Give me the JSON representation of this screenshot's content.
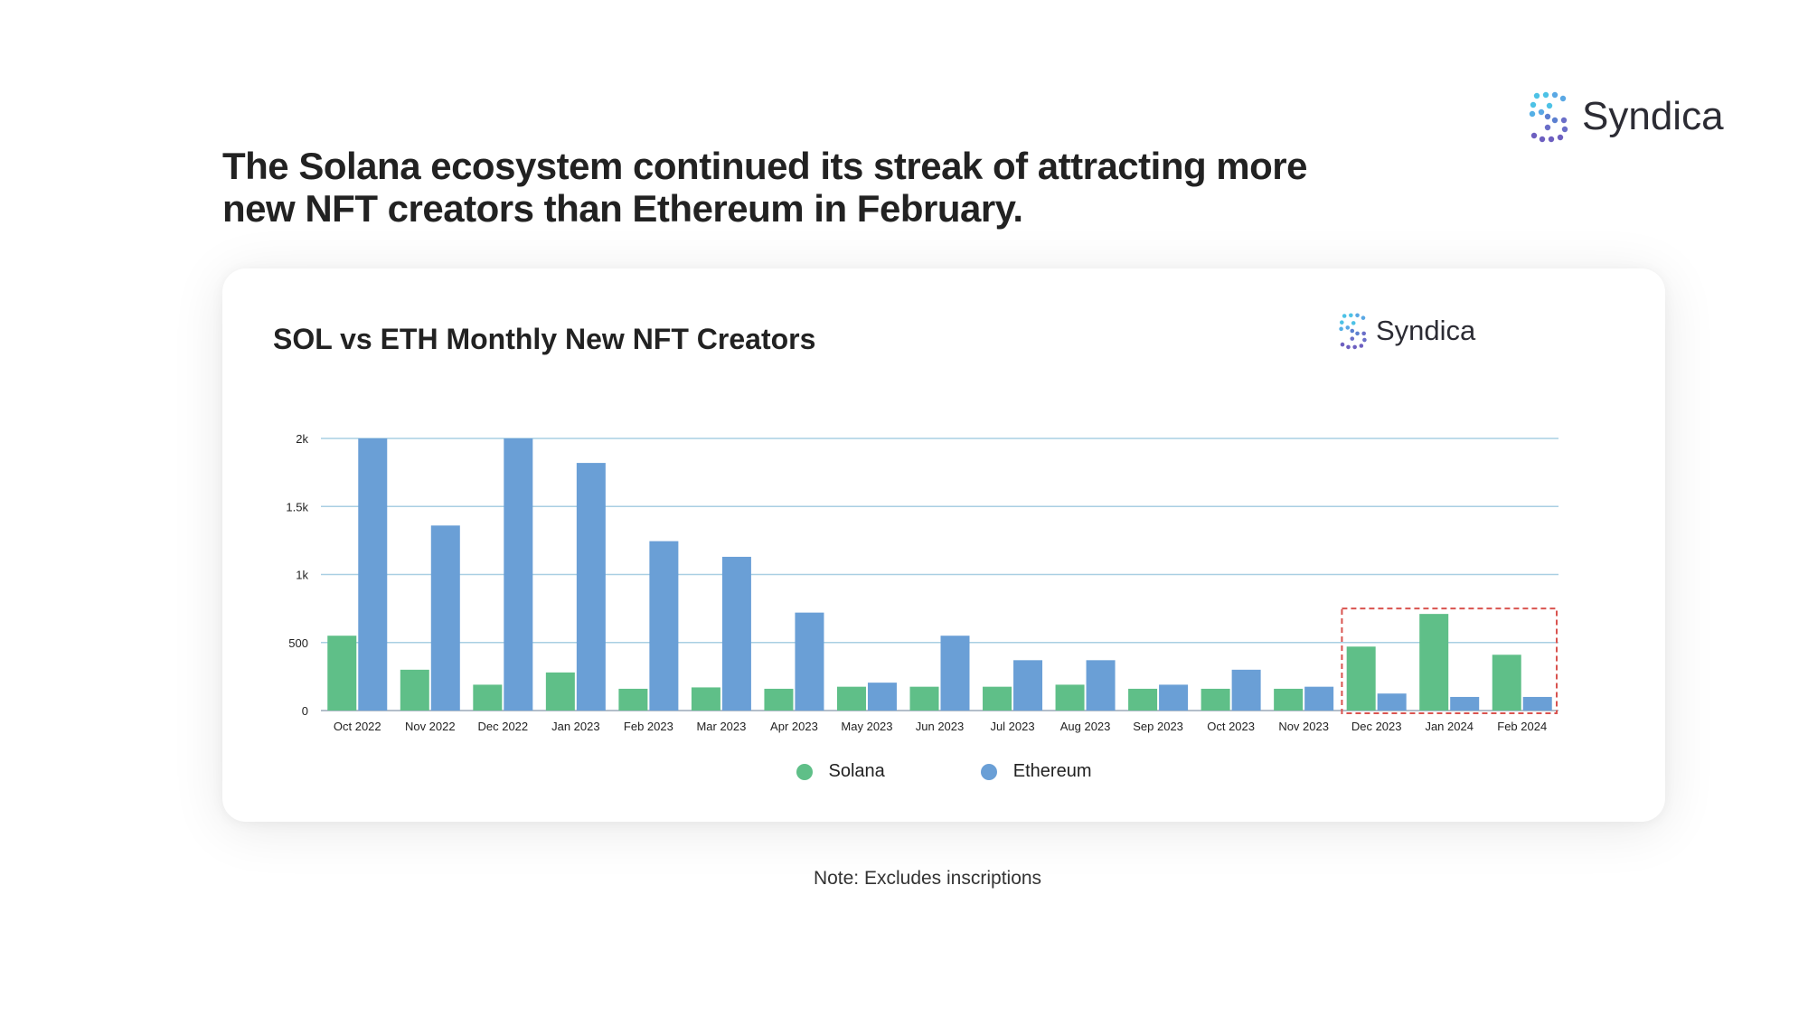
{
  "headline": "The Solana ecosystem continued its streak of attracting more new NFT creators than Ethereum in February.",
  "brand": {
    "name": "Syndica"
  },
  "note": "Note: Excludes inscriptions",
  "chart_data": {
    "type": "bar",
    "title": "SOL vs ETH Monthly New NFT Creators",
    "xlabel": "",
    "ylabel": "",
    "categories": [
      "Oct 2022",
      "Nov 2022",
      "Dec 2022",
      "Jan 2023",
      "Feb 2023",
      "Mar 2023",
      "Apr 2023",
      "May 2023",
      "Jun 2023",
      "Jul 2023",
      "Aug 2023",
      "Sep 2023",
      "Oct 2023",
      "Nov 2023",
      "Dec 2023",
      "Jan 2024",
      "Feb 2024"
    ],
    "series": [
      {
        "name": "Solana",
        "color": "#5fbf88",
        "values": [
          550,
          300,
          190,
          280,
          160,
          170,
          160,
          175,
          175,
          175,
          190,
          160,
          160,
          160,
          470,
          710,
          410
        ]
      },
      {
        "name": "Ethereum",
        "color": "#6a9fd6",
        "values": [
          2000,
          1360,
          2000,
          1820,
          1245,
          1130,
          720,
          205,
          550,
          370,
          370,
          190,
          300,
          175,
          125,
          100,
          100
        ]
      }
    ],
    "ylim": [
      0,
      2000
    ],
    "yticks": [
      0,
      500,
      1000,
      1500,
      2000
    ],
    "ytick_labels": [
      "0",
      "500",
      "1k",
      "1.5k",
      "2k"
    ],
    "grid": true,
    "legend_position": "bottom-center",
    "highlight": {
      "categories": [
        "Dec 2023",
        "Jan 2024",
        "Feb 2024"
      ],
      "style": "dashed-red-box",
      "color": "#d9534f"
    }
  }
}
